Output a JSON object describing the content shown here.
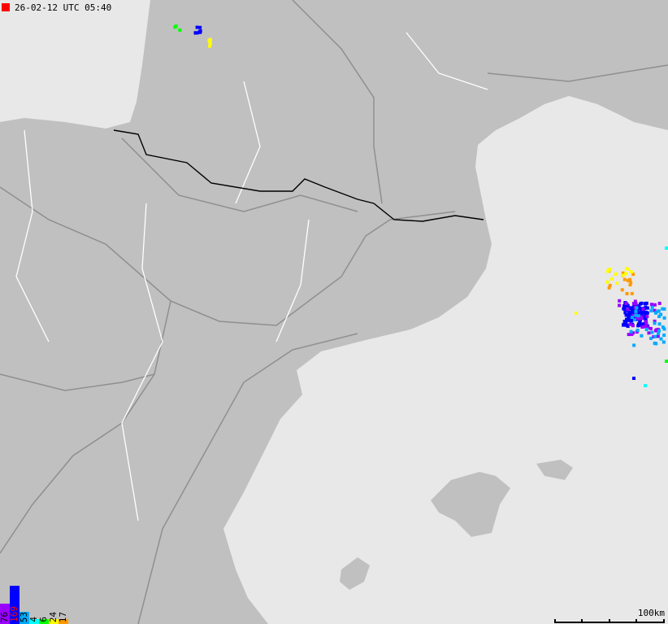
{
  "header": {
    "timestamp": "26-02-12 UTC 05:40",
    "indicator_color": "#ff0000"
  },
  "colors": {
    "sea": "#e8e8e8",
    "land": "#c0c0c0",
    "roads": "#8f8f8f",
    "borders_regional": "#ffffff",
    "border_national": "#000000",
    "urban": "#505050"
  },
  "legend": [
    {
      "count": "76",
      "color": "#9900ff",
      "text_color": "#000000"
    },
    {
      "count": "169",
      "color": "#0000ff",
      "text_color": "#ff0000"
    },
    {
      "count": "53",
      "color": "#00aaff",
      "text_color": "#000000"
    },
    {
      "count": "4",
      "color": "#00ffff",
      "text_color": "#000000"
    },
    {
      "count": "6",
      "color": "#00ff00",
      "text_color": "#000000"
    },
    {
      "count": "24",
      "color": "#ffff00",
      "text_color": "#000000"
    },
    {
      "count": "17",
      "color": "#ff9900",
      "text_color": "#000000"
    }
  ],
  "scale": {
    "label": "100km"
  }
}
